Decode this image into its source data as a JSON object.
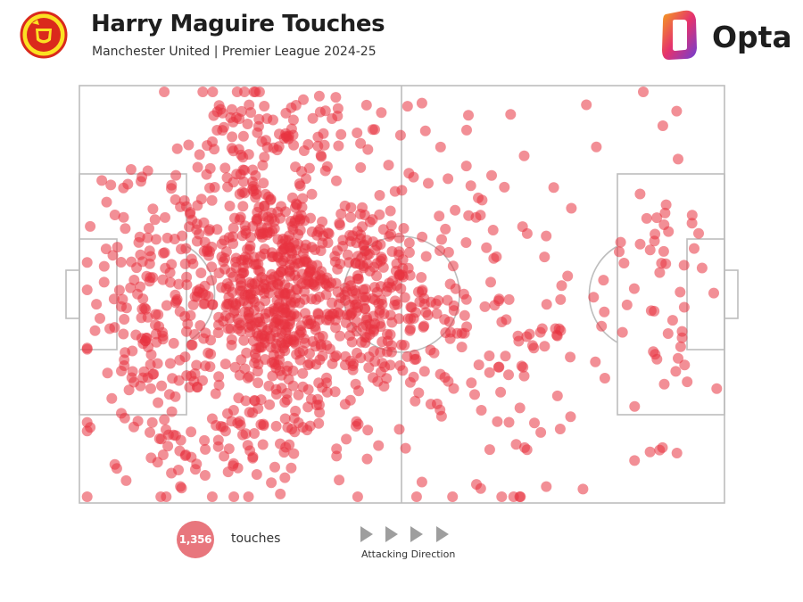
{
  "header": {
    "title": "Harry Maguire Touches",
    "subtitle": "Manchester United | Premier League 2024-25"
  },
  "brand": {
    "logo_text": "Opta"
  },
  "legend": {
    "count": "1,356",
    "count_label": "touches",
    "direction_label": "Attacking Direction"
  },
  "colors": {
    "dot": "#e8333f",
    "dot_opacity": 0.55,
    "pitch_line": "#bdbdbd",
    "badge": "#e8767d",
    "crest_red": "#da291c",
    "crest_gold": "#fbe122",
    "opta_gradient": [
      "#f5a21b",
      "#e5326d",
      "#6c3fd6"
    ]
  },
  "chart_data": {
    "type": "scatter",
    "description_units": "pitch coordinates, x 0-100 (own goal to opposition goal), y 0-100 (top to bottom)",
    "xlim": [
      0,
      100
    ],
    "ylim": [
      0,
      100
    ],
    "total_points": 1356,
    "legend": "none",
    "density_clusters": [
      {
        "x": 30,
        "y": 48,
        "sx": 6.5,
        "sy": 19,
        "weight": 0.48
      },
      {
        "x": 45,
        "y": 50,
        "sx": 4,
        "sy": 12,
        "weight": 0.14
      },
      {
        "x": 11,
        "y": 53,
        "sx": 5.5,
        "sy": 19,
        "weight": 0.13
      },
      {
        "x": 58,
        "y": 55,
        "sx": 9,
        "sy": 22,
        "weight": 0.09
      },
      {
        "x": 24,
        "y": 88,
        "sx": 9,
        "sy": 5,
        "weight": 0.04
      },
      {
        "x": 33,
        "y": 9,
        "sx": 9,
        "sy": 5,
        "weight": 0.04
      },
      {
        "x": 73,
        "y": 60,
        "sx": 8,
        "sy": 23,
        "weight": 0.04
      },
      {
        "x": 91,
        "y": 52,
        "sx": 3,
        "sy": 18,
        "weight": 0.04
      }
    ]
  }
}
